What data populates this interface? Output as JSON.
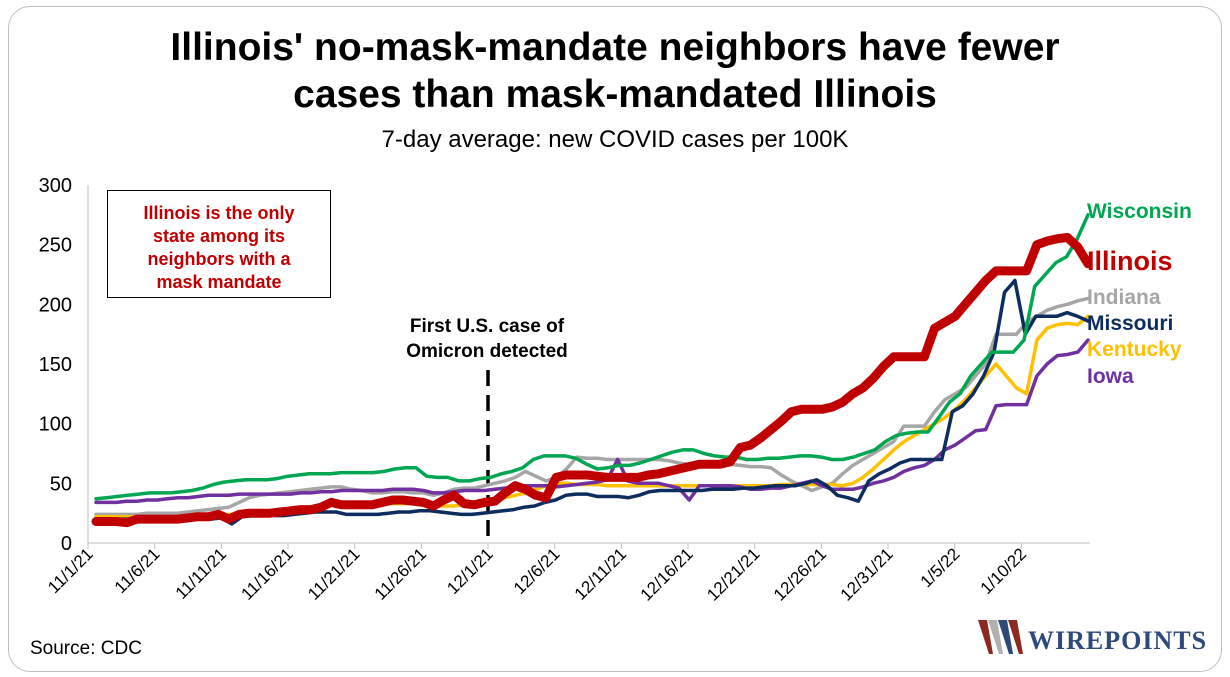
{
  "title_line1": "Illinois' no-mask-mandate neighbors have fewer",
  "title_line2": "cases than mask-mandated Illinois",
  "subtitle": "7-day average: new COVID cases per 100K",
  "source": "Source: CDC",
  "note_box": {
    "lines": [
      "Illinois is the only",
      "state among its",
      "neighbors with a",
      "mask mandate"
    ],
    "color": "#c00000"
  },
  "annotation": {
    "line1": "First U.S. case of",
    "line2": "Omicron detected",
    "x_date": "12/1/21"
  },
  "logo": {
    "text": "WIREPOINTS",
    "icon": "wirepoints-logo-icon"
  },
  "chart_data": {
    "type": "line",
    "ylim": [
      0,
      300
    ],
    "yticks": [
      0,
      50,
      100,
      150,
      200,
      250,
      300
    ],
    "x_start": "11/1/21",
    "x_end": "1/15/22",
    "x_tick_labels": [
      "11/1/21",
      "11/6/21",
      "11/11/21",
      "11/16/21",
      "11/21/21",
      "11/26/21",
      "12/1/21",
      "12/6/21",
      "12/11/21",
      "12/16/21",
      "12/21/21",
      "12/26/21",
      "12/31/21",
      "1/5/22",
      "1/10/22"
    ],
    "grid": false,
    "legend": "labels-at-line-ends-right",
    "series": [
      {
        "name": "Wisconsin",
        "color": "#00a650",
        "values": [
          37,
          38,
          39,
          40,
          41,
          42,
          42,
          42,
          43,
          44,
          46,
          49,
          51,
          52,
          53,
          53,
          53,
          54,
          56,
          57,
          58,
          58,
          58,
          59,
          59,
          59,
          59,
          60,
          62,
          63,
          63,
          56,
          55,
          55,
          52,
          52,
          54,
          55,
          58,
          60,
          63,
          70,
          73,
          73,
          73,
          71,
          66,
          62,
          63,
          65,
          65,
          67,
          70,
          73,
          76,
          78,
          78,
          75,
          73,
          72,
          72,
          70,
          70,
          71,
          71,
          72,
          73,
          73,
          72,
          70,
          70,
          72,
          75,
          78,
          85,
          90,
          92,
          93,
          93,
          105,
          118,
          125,
          140,
          150,
          160,
          160,
          160,
          170,
          215,
          225,
          235,
          240,
          255,
          275
        ]
      },
      {
        "name": "Illinois",
        "color": "#c00000",
        "values": [
          18,
          18,
          18,
          17,
          20,
          20,
          20,
          20,
          20,
          21,
          22,
          22,
          24,
          20,
          24,
          25,
          25,
          25,
          26,
          27,
          28,
          28,
          30,
          34,
          32,
          32,
          32,
          32,
          34,
          36,
          36,
          35,
          34,
          31,
          36,
          40,
          33,
          32,
          34,
          35,
          42,
          48,
          45,
          40,
          38,
          55,
          57,
          57,
          57,
          56,
          55,
          55,
          55,
          55,
          57,
          58,
          60,
          62,
          64,
          66,
          66,
          66,
          68,
          80,
          82,
          88,
          95,
          102,
          110,
          112,
          112,
          112,
          114,
          118,
          125,
          130,
          138,
          148,
          156,
          156,
          156,
          156,
          180,
          185,
          190,
          200,
          210,
          220,
          228,
          228,
          228,
          228,
          250,
          253,
          255,
          256,
          248,
          234
        ]
      },
      {
        "name": "Indiana",
        "color": "#a6a6a6",
        "values": [
          24,
          24,
          24,
          24,
          24,
          25,
          25,
          25,
          25,
          26,
          27,
          28,
          29,
          30,
          34,
          38,
          40,
          41,
          42,
          43,
          44,
          45,
          46,
          47,
          47,
          45,
          44,
          42,
          42,
          43,
          43,
          42,
          42,
          40,
          42,
          45,
          46,
          46,
          48,
          50,
          52,
          55,
          60,
          56,
          52,
          55,
          62,
          72,
          71,
          71,
          70,
          70,
          70,
          70,
          70,
          70,
          69,
          67,
          66,
          66,
          66,
          66,
          66,
          65,
          64,
          64,
          63,
          57,
          52,
          48,
          44,
          47,
          50,
          58,
          65,
          70,
          75,
          80,
          85,
          98,
          98,
          98,
          110,
          120,
          125,
          130,
          140,
          150,
          175,
          175,
          175,
          185,
          190,
          195,
          198,
          200,
          203,
          205
        ]
      },
      {
        "name": "Missouri",
        "color": "#0d2d5f",
        "values": [
          20,
          20,
          20,
          20,
          20,
          20,
          20,
          20,
          20,
          20,
          20,
          20,
          21,
          16,
          22,
          23,
          23,
          23,
          23,
          24,
          25,
          26,
          26,
          26,
          24,
          24,
          24,
          24,
          25,
          26,
          26,
          27,
          27,
          26,
          25,
          24,
          24,
          25,
          26,
          27,
          28,
          30,
          31,
          34,
          36,
          40,
          41,
          41,
          39,
          39,
          39,
          38,
          40,
          43,
          44,
          44,
          44,
          44,
          44,
          45,
          45,
          45,
          46,
          46,
          47,
          48,
          48,
          48,
          50,
          53,
          48,
          40,
          38,
          35,
          52,
          58,
          62,
          67,
          70,
          70,
          70,
          70,
          110,
          115,
          125,
          140,
          160,
          210,
          220,
          175,
          190,
          190,
          190,
          193,
          190,
          186
        ]
      },
      {
        "name": "Kentucky",
        "color": "#ffc000",
        "values": [
          22,
          22,
          22,
          22,
          22,
          22,
          22,
          22,
          22,
          22,
          22,
          23,
          23,
          24,
          24,
          25,
          25,
          26,
          27,
          27,
          28,
          29,
          30,
          32,
          32,
          32,
          32,
          32,
          33,
          33,
          33,
          33,
          32,
          31,
          31,
          31,
          32,
          33,
          34,
          36,
          38,
          40,
          42,
          45,
          48,
          50,
          50,
          49,
          49,
          49,
          48,
          48,
          48,
          48,
          48,
          48,
          48,
          48,
          48,
          48,
          48,
          48,
          48,
          48,
          48,
          48,
          48,
          49,
          49,
          49,
          49,
          49,
          49,
          48,
          50,
          55,
          62,
          70,
          78,
          85,
          90,
          95,
          100,
          105,
          112,
          120,
          130,
          140,
          150,
          140,
          130,
          125,
          170,
          180,
          183,
          184,
          183,
          190
        ]
      },
      {
        "name": "Iowa",
        "color": "#7030a0",
        "values": [
          34,
          34,
          34,
          35,
          35,
          36,
          36,
          37,
          38,
          38,
          39,
          40,
          40,
          40,
          41,
          41,
          41,
          41,
          41,
          41,
          42,
          42,
          43,
          43,
          44,
          44,
          44,
          44,
          44,
          45,
          45,
          45,
          44,
          42,
          42,
          43,
          44,
          44,
          44,
          45,
          46,
          47,
          48,
          48,
          48,
          47,
          48,
          49,
          50,
          51,
          53,
          70,
          52,
          50,
          50,
          50,
          48,
          46,
          36,
          48,
          48,
          48,
          48,
          47,
          45,
          45,
          46,
          46,
          48,
          50,
          52,
          48,
          45,
          45,
          45,
          47,
          50,
          52,
          55,
          60,
          63,
          65,
          70,
          78,
          82,
          88,
          94,
          95,
          115,
          116,
          116,
          116,
          140,
          150,
          157,
          158,
          160,
          170
        ]
      }
    ]
  }
}
